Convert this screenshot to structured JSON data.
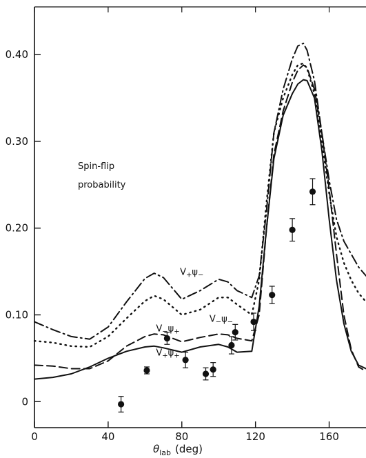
{
  "chart_data": {
    "type": "line",
    "title": "",
    "annotation_title": [
      "Spin-flip",
      "probability"
    ],
    "xlabel": "θlab (deg)",
    "xlabel_main": "θ",
    "xlabel_sub": "lab",
    "xlabel_unit": "(deg)",
    "ylabel": "",
    "xlim": [
      0,
      180
    ],
    "ylim": [
      -0.03,
      0.455
    ],
    "x_ticks": [
      0,
      40,
      80,
      120,
      160
    ],
    "x_tick_labels": [
      "0",
      "40",
      "80",
      "120",
      "160"
    ],
    "y_ticks": [
      0,
      0.1,
      0.2,
      0.3,
      0.4
    ],
    "y_tick_labels": [
      "0",
      "0.10",
      "0.20",
      "0.30",
      "0.40"
    ],
    "grid": false,
    "legend": "none",
    "series": [
      {
        "name": "V₊ψ₋",
        "style": "dash-dot",
        "x": [
          0,
          10,
          20,
          30,
          40,
          50,
          60,
          65,
          70,
          80,
          90,
          100,
          105,
          110,
          118,
          122,
          126,
          130,
          135,
          140,
          143,
          146,
          148,
          152,
          156,
          160,
          164,
          168,
          172,
          176,
          180
        ],
        "y": [
          0.092,
          0.083,
          0.075,
          0.072,
          0.086,
          0.115,
          0.142,
          0.148,
          0.143,
          0.118,
          0.128,
          0.141,
          0.138,
          0.128,
          0.12,
          0.145,
          0.22,
          0.31,
          0.36,
          0.395,
          0.41,
          0.413,
          0.405,
          0.37,
          0.31,
          0.255,
          0.21,
          0.185,
          0.17,
          0.155,
          0.145
        ]
      },
      {
        "name": "V₋ψ₋",
        "style": "dotted",
        "x": [
          0,
          10,
          20,
          30,
          40,
          50,
          60,
          65,
          70,
          80,
          90,
          100,
          105,
          110,
          118,
          122,
          126,
          130,
          135,
          140,
          143,
          146,
          148,
          152,
          156,
          160,
          164,
          168,
          172,
          176,
          180
        ],
        "y": [
          0.07,
          0.068,
          0.064,
          0.063,
          0.075,
          0.096,
          0.116,
          0.122,
          0.118,
          0.1,
          0.106,
          0.12,
          0.12,
          0.112,
          0.1,
          0.14,
          0.23,
          0.31,
          0.35,
          0.377,
          0.388,
          0.39,
          0.384,
          0.355,
          0.3,
          0.24,
          0.19,
          0.16,
          0.14,
          0.125,
          0.115
        ]
      },
      {
        "name": "V₋ψ₊",
        "style": "dashed",
        "x": [
          0,
          10,
          20,
          30,
          40,
          50,
          60,
          65,
          70,
          80,
          90,
          100,
          105,
          110,
          118,
          122,
          126,
          130,
          135,
          140,
          143,
          146,
          148,
          152,
          156,
          160,
          164,
          168,
          172,
          176,
          180
        ],
        "y": [
          0.042,
          0.041,
          0.038,
          0.038,
          0.047,
          0.064,
          0.075,
          0.078,
          0.077,
          0.069,
          0.074,
          0.078,
          0.077,
          0.073,
          0.07,
          0.1,
          0.2,
          0.285,
          0.335,
          0.368,
          0.382,
          0.388,
          0.385,
          0.36,
          0.31,
          0.245,
          0.17,
          0.1,
          0.06,
          0.04,
          0.035
        ]
      },
      {
        "name": "V₊ψ₊",
        "style": "solid",
        "x": [
          0,
          10,
          20,
          30,
          40,
          50,
          60,
          65,
          70,
          80,
          90,
          100,
          105,
          110,
          118,
          122,
          126,
          130,
          135,
          140,
          143,
          146,
          148,
          152,
          156,
          160,
          164,
          168,
          172,
          176,
          180
        ],
        "y": [
          0.026,
          0.028,
          0.032,
          0.04,
          0.05,
          0.058,
          0.063,
          0.064,
          0.062,
          0.057,
          0.063,
          0.066,
          0.063,
          0.057,
          0.058,
          0.11,
          0.2,
          0.28,
          0.33,
          0.355,
          0.366,
          0.371,
          0.37,
          0.35,
          0.29,
          0.21,
          0.14,
          0.09,
          0.058,
          0.042,
          0.038
        ]
      }
    ],
    "measured_points": {
      "x": [
        47,
        61,
        72,
        82,
        93,
        97,
        107,
        109,
        119,
        129,
        140,
        151
      ],
      "y": [
        -0.003,
        0.036,
        0.073,
        0.048,
        0.032,
        0.037,
        0.065,
        0.08,
        0.092,
        0.123,
        0.198,
        0.242
      ],
      "err": [
        0.009,
        0.004,
        0.007,
        0.009,
        0.007,
        0.008,
        0.01,
        0.009,
        0.01,
        0.01,
        0.013,
        0.015
      ]
    },
    "curve_labels": [
      {
        "series": "V₊ψ₋",
        "text_main1": "V",
        "text_sub1": "+",
        "text_main2": "ψ",
        "text_sub2": "−",
        "at_x": 79,
        "at_y": 0.146
      },
      {
        "series": "V₋ψ₋",
        "text_main1": "V",
        "text_sub1": "−",
        "text_main2": "ψ",
        "text_sub2": "−",
        "at_x": 95,
        "at_y": 0.092
      },
      {
        "series": "V₋ψ₊",
        "text_main1": "V",
        "text_sub1": "−",
        "text_main2": "ψ",
        "text_sub2": "+",
        "at_x": 66,
        "at_y": 0.081
      },
      {
        "series": "V₊ψ₊",
        "text_main1": "V",
        "text_sub1": "+",
        "text_main2": "ψ",
        "text_sub2": "+",
        "at_x": 66,
        "at_y": 0.053
      }
    ],
    "colors": {
      "ink": "#111111",
      "background": "#ffffff"
    }
  }
}
